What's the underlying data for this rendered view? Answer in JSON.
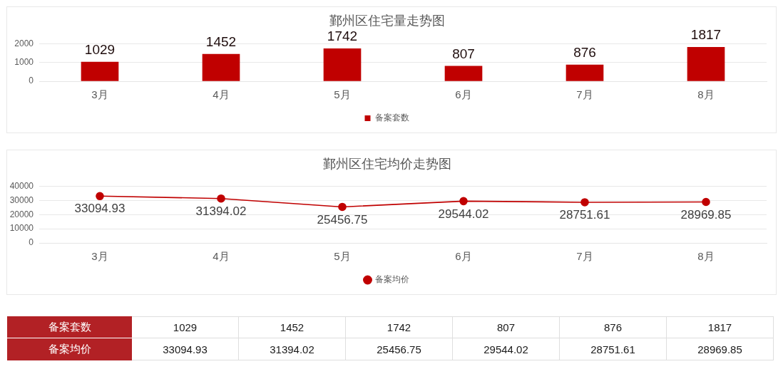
{
  "chart_data": [
    {
      "type": "bar",
      "title": "鄞州区住宅量走势图",
      "categories": [
        "3月",
        "4月",
        "5月",
        "6月",
        "7月",
        "8月"
      ],
      "series": [
        {
          "name": "备案套数",
          "color": "#c00000",
          "values": [
            1029,
            1452,
            1742,
            807,
            876,
            1817
          ]
        }
      ],
      "ylim": [
        0,
        2000
      ],
      "yticks": [
        0,
        1000,
        2000
      ],
      "grid": "y",
      "legend": "bottom",
      "data_labels": true
    },
    {
      "type": "line",
      "title": "鄞州区住宅均价走势图",
      "categories": [
        "3月",
        "4月",
        "5月",
        "6月",
        "7月",
        "8月"
      ],
      "series": [
        {
          "name": "备案均价",
          "color": "#c00000",
          "values": [
            33094.93,
            31394.02,
            25456.75,
            29544.02,
            28751.61,
            28969.85
          ]
        }
      ],
      "ylim": [
        0,
        40000
      ],
      "yticks": [
        0,
        10000,
        20000,
        30000,
        40000
      ],
      "grid": "y",
      "legend": "bottom",
      "marker": "circle",
      "line_style": "solid",
      "data_labels": true
    },
    {
      "type": "other",
      "y_categories": [
        "备案套数",
        "备案均价"
      ],
      "cell_labels": [
        [
          "1029",
          "1452",
          "1742",
          "807",
          "876",
          "1817"
        ],
        [
          "33094.93",
          "31394.02",
          "25456.75",
          "29544.02",
          "28751.61",
          "28969.85"
        ]
      ]
    }
  ]
}
